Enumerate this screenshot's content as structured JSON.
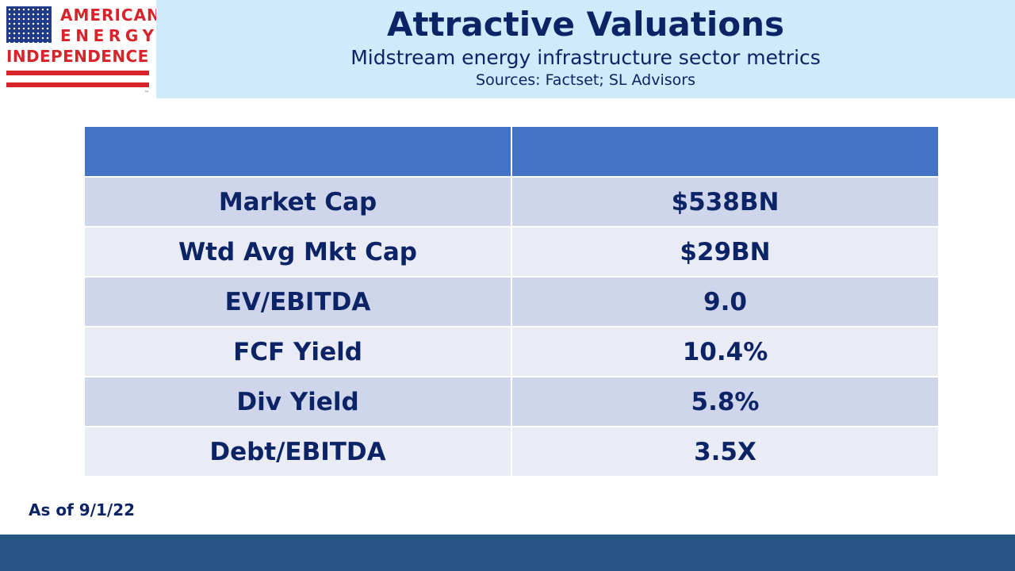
{
  "logo": {
    "line1": "AMERICAN",
    "line2": "ENERGY",
    "line3": "INDEPENDENCE",
    "trademark": "™"
  },
  "header": {
    "title": "Attractive Valuations",
    "subtitle": "Midstream energy infrastructure sector metrics",
    "sources": "Sources: Factset; SL Advisors"
  },
  "table": {
    "header": [
      "",
      ""
    ],
    "rows": [
      {
        "metric": "Market Cap",
        "value": "$538BN"
      },
      {
        "metric": "Wtd Avg Mkt Cap",
        "value": "$29BN"
      },
      {
        "metric": "EV/EBITDA",
        "value": "9.0"
      },
      {
        "metric": "FCF Yield",
        "value": "10.4%"
      },
      {
        "metric": "Div Yield",
        "value": "5.8%"
      },
      {
        "metric": "Debt/EBITDA",
        "value": "3.5X"
      }
    ]
  },
  "footer_note": "As of 9/1/22",
  "colors": {
    "banner": "#cfeafb",
    "header_row": "#4472c4",
    "row_dark": "#cfd5ea",
    "row_light": "#e9ebf5",
    "text": "#0c2366",
    "footer_bar": "#285684",
    "logo_red": "#d8232a"
  }
}
